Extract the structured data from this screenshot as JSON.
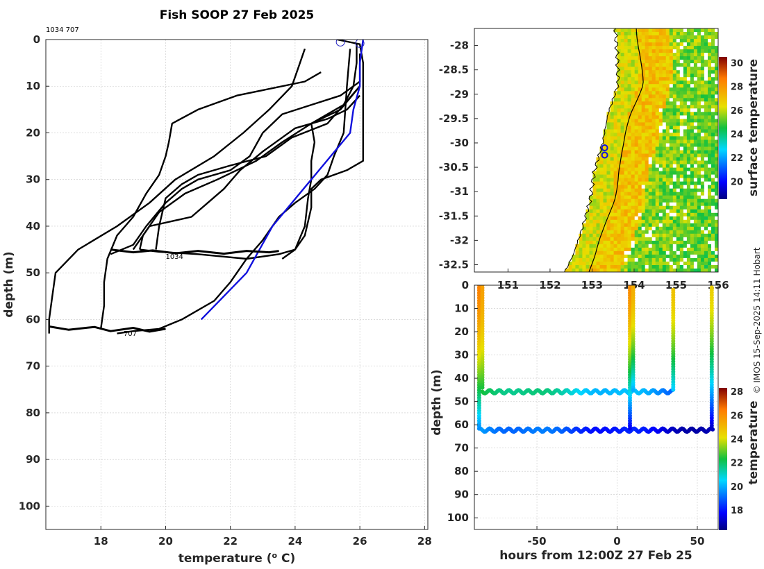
{
  "figure": {
    "title": "Fish SOOP 27 Feb 2025",
    "credit": "© IMOS 15-Sep-2025 14:11 Hobart",
    "top_label": "1034 707"
  },
  "chart_data": [
    {
      "type": "line",
      "name": "profiles",
      "xlabel": "temperature (o C)",
      "xlabel_main": "temperature (",
      "xlabel_sup": "o",
      "xlabel_tail": " C)",
      "ylabel": "depth (m)",
      "xlim": [
        16.3,
        28.1
      ],
      "ylim": [
        105,
        0
      ],
      "xticks": [
        18,
        20,
        22,
        24,
        26,
        28
      ],
      "yticks": [
        0,
        10,
        20,
        30,
        40,
        50,
        60,
        70,
        80,
        90,
        100
      ],
      "grid": true,
      "series": [
        {
          "name": "profile-1",
          "color": "#000000",
          "points": [
            [
              24.3,
              2
            ],
            [
              24.1,
              6
            ],
            [
              23.9,
              10
            ],
            [
              23.2,
              15
            ],
            [
              22.4,
              20
            ],
            [
              21.5,
              25
            ],
            [
              20.3,
              30
            ],
            [
              19.5,
              35
            ],
            [
              18.5,
              40
            ],
            [
              17.3,
              45
            ],
            [
              16.6,
              50
            ],
            [
              16.5,
              55
            ],
            [
              16.4,
              60
            ],
            [
              16.4,
              63
            ]
          ]
        },
        {
          "name": "profile-2",
          "color": "#000000",
          "points": [
            [
              24.8,
              7
            ],
            [
              24.3,
              9
            ],
            [
              22.2,
              12
            ],
            [
              21.0,
              15
            ],
            [
              20.2,
              18
            ],
            [
              20.1,
              22
            ],
            [
              20.0,
              25
            ],
            [
              19.8,
              29
            ],
            [
              19.4,
              33
            ],
            [
              19.0,
              38
            ],
            [
              18.5,
              42
            ],
            [
              18.2,
              47
            ],
            [
              18.1,
              52
            ],
            [
              18.1,
              57
            ],
            [
              18.0,
              62
            ]
          ]
        },
        {
          "name": "profile-3",
          "color": "#000000",
          "points": [
            [
              26.0,
              3
            ],
            [
              26.0,
              9
            ],
            [
              25.4,
              12
            ],
            [
              24.5,
              14
            ],
            [
              23.6,
              16
            ],
            [
              23.0,
              20
            ],
            [
              22.6,
              25
            ],
            [
              22.0,
              28
            ],
            [
              21.0,
              30
            ],
            [
              20.5,
              32
            ],
            [
              20.0,
              35
            ],
            [
              19.4,
              40
            ],
            [
              19.0,
              44
            ],
            [
              18.3,
              46
            ]
          ]
        },
        {
          "name": "profile-4",
          "color": "#000000",
          "points": [
            [
              26.0,
              10
            ],
            [
              25.5,
              14
            ],
            [
              25.0,
              18
            ],
            [
              23.9,
              21
            ],
            [
              23.1,
              25
            ],
            [
              22.0,
              27
            ],
            [
              21.0,
              29
            ],
            [
              20.5,
              31
            ],
            [
              20.0,
              34
            ],
            [
              19.8,
              40
            ],
            [
              19.7,
              45
            ]
          ]
        },
        {
          "name": "profile-5",
          "color": "#000000",
          "points": [
            [
              26.0,
              10
            ],
            [
              25.4,
              15
            ],
            [
              24.5,
              18
            ],
            [
              23.6,
              22
            ],
            [
              22.8,
              26
            ],
            [
              21.6,
              30
            ],
            [
              20.6,
              33
            ],
            [
              19.8,
              37
            ],
            [
              19.3,
              42
            ],
            [
              19.2,
              45
            ]
          ]
        },
        {
          "name": "profile-6",
          "color": "#000000",
          "points": [
            [
              26.0,
              12
            ],
            [
              25.6,
              15
            ],
            [
              25.0,
              17
            ],
            [
              24.0,
              19
            ],
            [
              23.0,
              24
            ],
            [
              22.3,
              28
            ],
            [
              21.8,
              32
            ],
            [
              21.3,
              35
            ],
            [
              20.8,
              38
            ],
            [
              19.5,
              40
            ],
            [
              19.2,
              43
            ],
            [
              19.0,
              45
            ]
          ]
        },
        {
          "name": "profile-7",
          "color": "#000000",
          "points": [
            [
              25.7,
              2
            ],
            [
              25.6,
              10
            ],
            [
              25.5,
              20
            ],
            [
              25.2,
              25
            ],
            [
              25.0,
              29
            ],
            [
              24.6,
              32
            ],
            [
              24.0,
              35
            ],
            [
              23.5,
              38
            ],
            [
              23.0,
              43
            ],
            [
              22.5,
              47
            ],
            [
              22.0,
              52
            ],
            [
              21.5,
              56
            ],
            [
              20.5,
              60
            ],
            [
              19.8,
              62
            ],
            [
              19.0,
              62.5
            ],
            [
              18.5,
              63
            ]
          ]
        },
        {
          "name": "profile-8",
          "color": "#000000",
          "points": [
            [
              25.3,
              0
            ],
            [
              26.0,
              1
            ],
            [
              26.1,
              5
            ],
            [
              26.1,
              10
            ],
            [
              26.1,
              18
            ],
            [
              26.1,
              26
            ],
            [
              25.6,
              28
            ],
            [
              24.8,
              30
            ],
            [
              24.5,
              32
            ],
            [
              24.5,
              36
            ],
            [
              24.3,
              42
            ],
            [
              24.0,
              45
            ],
            [
              23.5,
              46
            ],
            [
              22.5,
              47
            ],
            [
              21.0,
              46
            ],
            [
              19.8,
              45.5
            ],
            [
              19.2,
              45
            ]
          ]
        },
        {
          "name": "profile-9",
          "color": "#000000",
          "points": [
            [
              25.9,
              1
            ],
            [
              25.9,
              5
            ],
            [
              25.8,
              10
            ],
            [
              25.5,
              14
            ],
            [
              25.0,
              16
            ],
            [
              24.5,
              18
            ],
            [
              24.6,
              22
            ],
            [
              24.5,
              26
            ],
            [
              24.5,
              30
            ],
            [
              24.4,
              34
            ],
            [
              24.3,
              40
            ],
            [
              24.0,
              45
            ],
            [
              23.6,
              47
            ]
          ]
        },
        {
          "name": "cast",
          "color": "#1010dd",
          "points": [
            [
              26.1,
              0
            ],
            [
              26.0,
              5
            ],
            [
              26.0,
              10
            ],
            [
              25.8,
              15
            ],
            [
              25.7,
              20
            ],
            [
              24.5,
              30
            ],
            [
              23.3,
              40
            ],
            [
              22.5,
              50
            ],
            [
              21.8,
              55
            ],
            [
              21.1,
              60
            ]
          ]
        },
        {
          "name": "oscillation-45m",
          "color": "#000000",
          "points": [
            [
              18.3,
              45
            ],
            [
              19.0,
              45.6
            ],
            [
              19.6,
              45.2
            ],
            [
              20.3,
              45.8
            ],
            [
              21.0,
              45.3
            ],
            [
              21.8,
              45.9
            ],
            [
              22.5,
              45.3
            ],
            [
              23.2,
              45.6
            ],
            [
              23.5,
              45.3
            ]
          ]
        },
        {
          "name": "oscillation-62m",
          "color": "#000000",
          "points": [
            [
              16.4,
              61.5
            ],
            [
              17.0,
              62.2
            ],
            [
              17.8,
              61.6
            ],
            [
              18.3,
              62.5
            ],
            [
              19.0,
              61.8
            ],
            [
              19.5,
              62.6
            ],
            [
              20.0,
              62.0
            ]
          ]
        }
      ],
      "markers": [
        [
          25.4,
          0.5
        ],
        [
          26.0,
          0.8
        ]
      ],
      "annotations": [
        {
          "text": "1034",
          "x": 20.0,
          "y": 47
        },
        {
          "text": "707",
          "x": 18.7,
          "y": 63.5
        }
      ]
    },
    {
      "type": "heatmap",
      "name": "sst-map",
      "colorbar_label": "surface temperature",
      "colorbar_ticks": [
        20,
        22,
        24,
        26,
        28,
        30
      ],
      "colorbar_range": [
        18.5,
        30.5
      ],
      "xlim": [
        150.2,
        156.0
      ],
      "ylim": [
        -32.65,
        -27.65
      ],
      "xticks": [
        151,
        152,
        153,
        154,
        155,
        156
      ],
      "yticks": [
        -28,
        -28.5,
        -29,
        -29.5,
        -30,
        -30.5,
        -31,
        -31.5,
        -32,
        -32.5
      ],
      "ytick_labels": [
        "-28",
        "-28.5",
        "-29",
        "-29.5",
        "-30",
        "-30.5",
        "-31",
        "-31.5",
        "-32",
        "-32.5"
      ],
      "markers": [
        [
          153.3,
          -30.1
        ],
        [
          153.3,
          -30.25
        ]
      ]
    },
    {
      "type": "scatter",
      "name": "depth-time",
      "xlabel": "hours from 12:00Z 27 Feb 25",
      "ylabel": "depth (m)",
      "xlim": [
        -89,
        63
      ],
      "ylim": [
        105,
        0
      ],
      "xticks": [
        -50,
        0,
        50
      ],
      "yticks": [
        0,
        10,
        20,
        30,
        40,
        50,
        60,
        70,
        80,
        90,
        100
      ],
      "colorbar_label": "temperature",
      "colorbar_ticks": [
        18,
        20,
        22,
        24,
        26,
        28
      ],
      "colorbar_range": [
        16.3,
        28.3
      ],
      "columns": [
        {
          "x": -86,
          "top": 0,
          "bottom": 62,
          "t_top": 26.3,
          "t_bottom": 19.5
        },
        {
          "x": -84,
          "top": 0,
          "bottom": 45,
          "t_top": 25.6,
          "t_bottom": 22.3
        },
        {
          "x": 8,
          "top": 0,
          "bottom": 62,
          "t_top": 26.1,
          "t_bottom": 17.5
        },
        {
          "x": 10,
          "top": 0,
          "bottom": 46,
          "t_top": 25.3,
          "t_bottom": 19.8
        },
        {
          "x": 35,
          "top": 2,
          "bottom": 46,
          "t_top": 24.8,
          "t_bottom": 20.2
        },
        {
          "x": 59,
          "top": 1,
          "bottom": 62,
          "t_top": 24.5,
          "t_bottom": 17.0
        }
      ],
      "tracks": [
        {
          "name": "track-45m",
          "x_start": -84,
          "x_end": 35,
          "depth": 45.8,
          "amplitude": 0.7,
          "period": 6,
          "t_start": 22.4,
          "t_end": 19.2
        },
        {
          "name": "track-62m",
          "x_start": -86,
          "x_end": 60,
          "depth": 62.3,
          "amplitude": 0.7,
          "period": 6,
          "t_start": 19.8,
          "t_end": 16.8
        }
      ]
    }
  ]
}
